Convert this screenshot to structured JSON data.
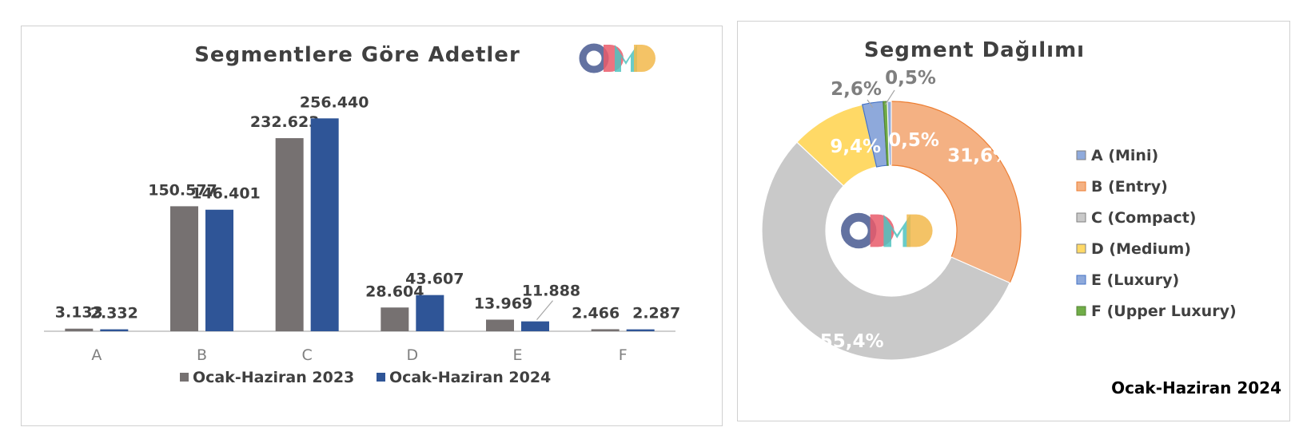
{
  "bar_chart": {
    "title": "Segmentlere Göre Adetler",
    "logo_text": "ODMD",
    "colors": {
      "series_2023": "#767171",
      "series_2024": "#2f5597",
      "axis": "#bfbfbf"
    }
  },
  "pie_chart": {
    "title": "Segment Dağılımı",
    "logo_text": "ODMD",
    "period_label": "Ocak-Haziran 2024"
  },
  "logo_colors": [
    "#5b6a9c",
    "#e95a6a",
    "#4fc3c0",
    "#f2b84b"
  ],
  "chart_data": [
    {
      "type": "bar",
      "title": "Segmentlere Göre Adetler",
      "categories": [
        "A",
        "B",
        "C",
        "D",
        "E",
        "F"
      ],
      "series": [
        {
          "name": "Ocak-Haziran 2023",
          "values": [
            3133,
            150577,
            232623,
            28604,
            13969,
            2466
          ],
          "labels": [
            "3.133",
            "150.577",
            "232.623",
            "28.604",
            "13.969",
            "2.466"
          ],
          "color": "#767171"
        },
        {
          "name": "Ocak-Haziran 2024",
          "values": [
            2332,
            146401,
            256440,
            43607,
            11888,
            2287
          ],
          "labels": [
            "2.332",
            "146.401",
            "256.440",
            "43.607",
            "11.888",
            "2.287"
          ],
          "color": "#2f5597"
        }
      ],
      "ylim": [
        0,
        300000
      ],
      "grid": false,
      "legend": "bottom"
    },
    {
      "type": "pie",
      "title": "Segment Dağılımı",
      "donut": true,
      "slices": [
        {
          "name": "A (Mini)",
          "value": 0.5,
          "label": "0,5%",
          "color": "#8faadc"
        },
        {
          "name": "B (Entry)",
          "value": 31.6,
          "label": "31,6%",
          "color": "#f4b183"
        },
        {
          "name": "C (Compact)",
          "value": 55.4,
          "label": "55,4%",
          "color": "#c9c9c9"
        },
        {
          "name": "D (Medium)",
          "value": 9.4,
          "label": "9,4%",
          "color": "#ffd966"
        },
        {
          "name": "E (Luxury)",
          "value": 2.6,
          "label": "2,6%",
          "color": "#8ea9db"
        },
        {
          "name": "F (Upper Luxury)",
          "value": 0.5,
          "label": "0,5%",
          "color": "#70ad47"
        }
      ],
      "slice_borders": {
        "B (Entry)": "#ed7d31",
        "E (Luxury)": "#4472c4",
        "F (Upper Luxury)": "#548235"
      },
      "legend": "right"
    }
  ]
}
